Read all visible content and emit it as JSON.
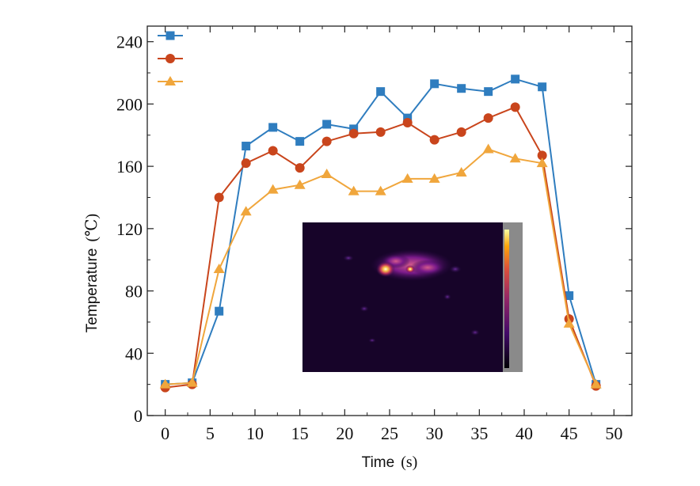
{
  "chart_data": {
    "type": "line",
    "title": "",
    "xlabel": {
      "main": "Time",
      "unit": "(s)"
    },
    "ylabel": {
      "main": "Temperature",
      "unit": "(℃)"
    },
    "xlim": [
      -2,
      52
    ],
    "ylim": [
      0,
      250
    ],
    "xticks": [
      0,
      5,
      10,
      15,
      20,
      25,
      30,
      35,
      40,
      45,
      50
    ],
    "yticks": [
      0,
      40,
      80,
      120,
      160,
      200,
      240
    ],
    "grid": false,
    "legend": "top-left",
    "x": [
      0,
      3,
      6,
      9,
      12,
      15,
      18,
      21,
      24,
      27,
      30,
      33,
      36,
      39,
      42,
      45,
      48
    ],
    "series": [
      {
        "marker": "square",
        "color": "#2f7dbf",
        "values": [
          20,
          21,
          67,
          173,
          185,
          176,
          187,
          184,
          208,
          191,
          213,
          210,
          208,
          216,
          211,
          77,
          20
        ]
      },
      {
        "marker": "circle",
        "color": "#c9451c",
        "values": [
          18,
          20,
          140,
          162,
          170,
          159,
          176,
          181,
          182,
          188,
          177,
          182,
          191,
          198,
          167,
          62,
          19
        ]
      },
      {
        "marker": "triangle",
        "color": "#f0a63c",
        "values": [
          20,
          21,
          94,
          131,
          145,
          148,
          155,
          144,
          144,
          152,
          152,
          156,
          171,
          165,
          162,
          59,
          20
        ]
      }
    ],
    "inset": {
      "type": "thermal-image",
      "colormap": "inferno",
      "placement": "center-bottom"
    }
  }
}
